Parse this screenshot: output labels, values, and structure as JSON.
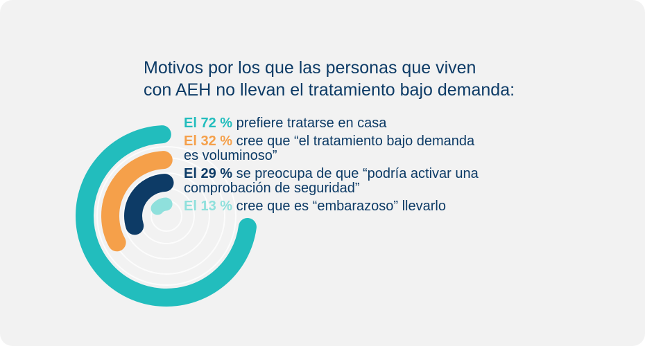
{
  "title": {
    "line1": "Motivos por los que las personas que viven",
    "line2": "con AEH no llevan el tratamiento bajo demanda:"
  },
  "colors": {
    "background": "#f2f2f2",
    "text": "#0d3b66",
    "teal": "#22bdbd",
    "orange": "#f5a04a",
    "navy": "#0d3b66",
    "light_teal": "#8fe0dc"
  },
  "chart_data": {
    "type": "radial-bar",
    "unit": "%",
    "max": 100,
    "categories": [
      "prefiere tratarse en casa",
      "cree que “el tratamiento bajo demanda es voluminoso”",
      "se preocupa de que “podría activar una comprobación de seguridad”",
      "cree que es “embarazoso” llevarlo"
    ],
    "values": [
      72,
      32,
      29,
      13
    ]
  },
  "legend": [
    {
      "pct": "El 72 %",
      "line1": "prefiere tratarse en casa",
      "line2": "",
      "color": "#22bdbd"
    },
    {
      "pct": "El 32 %",
      "line1": "cree que “el tratamiento bajo demanda",
      "line2": "es voluminoso”",
      "color": "#f5a04a"
    },
    {
      "pct": "El 29 %",
      "line1": "se preocupa de que “podría activar una",
      "line2": "comprobación de seguridad”",
      "color": "#0d3b66"
    },
    {
      "pct": "El 13 %",
      "line1": "cree que es “embarazoso” llevarlo",
      "line2": "",
      "color": "#8fe0dc"
    }
  ]
}
